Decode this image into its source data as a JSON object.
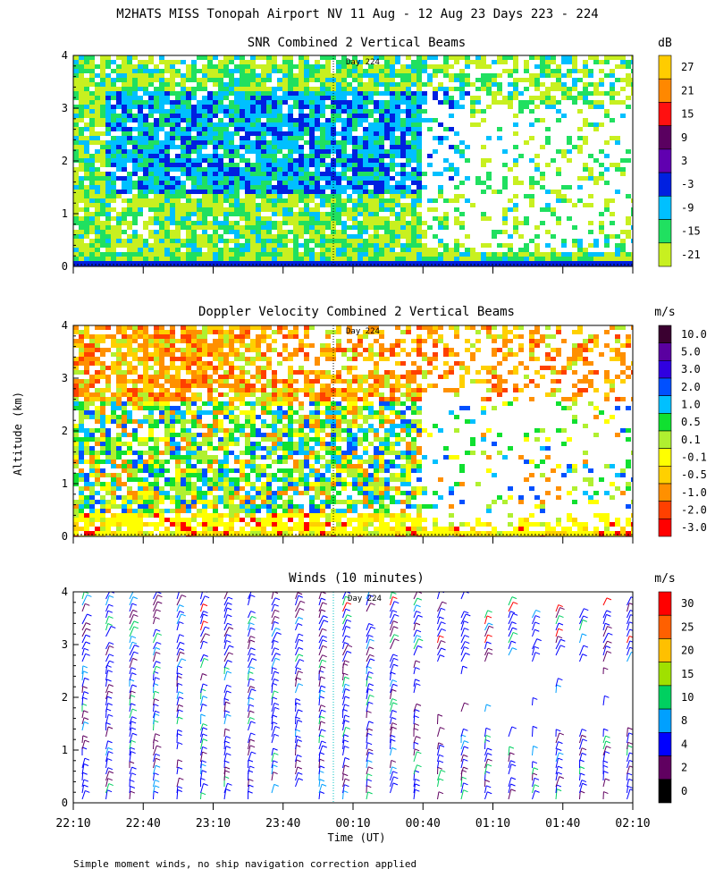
{
  "figure": {
    "title": "M2HATS MISS Tonopah Airport NV  11 Aug - 12 Aug 23 Days 223 - 224",
    "ylabel": "Altitude (km)",
    "xlabel": "Time (UT)",
    "footnote": "Simple moment winds, no ship navigation correction applied",
    "day_marker": "Day 224"
  },
  "chart_data": [
    {
      "type": "heatmap",
      "title": "SNR Combined 2 Vertical Beams",
      "colorbar_unit": "dB",
      "colorbar_ticks": [
        "27",
        "21",
        "15",
        "9",
        "3",
        "-3",
        "-9",
        "-15",
        "-21"
      ],
      "colorbar_colors": [
        "#ffcc00",
        "#ff8800",
        "#ff1010",
        "#5a0060",
        "#6000b0",
        "#0020e0",
        "#00c0ff",
        "#20e060",
        "#c8f020"
      ],
      "ylim": [
        0,
        4
      ],
      "yticks": [
        "0",
        "1",
        "2",
        "3",
        "4"
      ],
      "xlim": [
        "22:10",
        "02:10"
      ]
    },
    {
      "type": "heatmap",
      "title": "Doppler Velocity Combined 2 Vertical Beams",
      "colorbar_unit": "m/s",
      "colorbar_ticks": [
        "10.0",
        "5.0",
        "3.0",
        "2.0",
        "1.0",
        "0.5",
        "0.1",
        "-0.1",
        "-0.5",
        "-1.0",
        "-2.0",
        "-3.0"
      ],
      "colorbar_colors": [
        "#3a0030",
        "#5a00a0",
        "#3000e0",
        "#0050ff",
        "#00c0ff",
        "#10e030",
        "#b0f030",
        "#ffff00",
        "#ffd000",
        "#ff9000",
        "#ff4000",
        "#ff0000"
      ],
      "ylim": [
        0,
        4
      ],
      "yticks": [
        "0",
        "1",
        "2",
        "3",
        "4"
      ],
      "xlim": [
        "22:10",
        "02:10"
      ]
    },
    {
      "type": "scatter",
      "title": "Winds (10 minutes)",
      "colorbar_unit": "m/s",
      "colorbar_ticks": [
        "30",
        "25",
        "20",
        "15",
        "10",
        "8",
        "4",
        "2",
        "0"
      ],
      "colorbar_colors": [
        "#ff0000",
        "#ff6000",
        "#ffc000",
        "#a0e000",
        "#00d060",
        "#00a0ff",
        "#0000ff",
        "#600060",
        "#000000"
      ],
      "ylim": [
        0,
        4
      ],
      "yticks": [
        "0",
        "1",
        "2",
        "3",
        "4"
      ],
      "xlim": [
        "22:10",
        "02:10"
      ],
      "xticks": [
        "22:10",
        "22:40",
        "23:10",
        "23:40",
        "00:10",
        "00:40",
        "01:10",
        "01:40",
        "02:10"
      ]
    }
  ]
}
